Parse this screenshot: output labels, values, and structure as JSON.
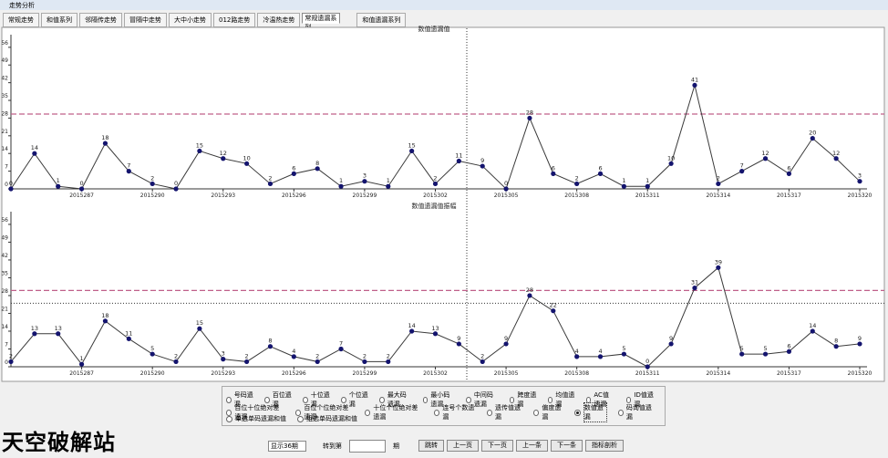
{
  "window_title": "走势分析",
  "tabs": [
    "常规走势",
    "和值系列",
    "邻隔传走势",
    "冒隔中走势",
    "大中小走势",
    "012路走势",
    "冷温热走势",
    "常规遗漏系列",
    "和值遗漏系列"
  ],
  "selected_tab": 7,
  "chart_data": [
    {
      "type": "line",
      "title": "数值遗漏值",
      "categories": [
        null,
        null,
        null,
        "2015287",
        null,
        null,
        "2015290",
        null,
        null,
        "2015293",
        null,
        null,
        "2015296",
        null,
        null,
        "2015299",
        null,
        null,
        "2015302",
        null,
        null,
        "2015305",
        null,
        null,
        "2015308",
        null,
        null,
        "2015311",
        null,
        null,
        "2015314",
        null,
        null,
        "2015317",
        null,
        null,
        "2015320"
      ],
      "values": [
        0,
        14,
        1,
        0,
        18,
        7,
        2,
        0,
        15,
        12,
        10,
        2,
        6,
        8,
        1,
        3,
        1,
        15,
        2,
        11,
        9,
        0,
        28,
        6,
        2,
        6,
        1,
        1,
        10,
        41,
        2,
        7,
        12,
        6,
        20,
        12,
        3
      ],
      "color": "#3a3a3a",
      "marker_color": "#14146e",
      "ylim": [
        0,
        61
      ],
      "yticks": [
        0,
        7,
        14,
        21,
        28,
        35,
        42,
        49,
        56
      ],
      "reference_lines": [
        {
          "value": 29.6,
          "color": "#c0608a",
          "style": "dashed"
        }
      ]
    },
    {
      "type": "line",
      "title": "数值遗漏值振幅",
      "categories": [
        null,
        null,
        null,
        "2015287",
        null,
        null,
        "2015290",
        null,
        null,
        "2015293",
        null,
        null,
        "2015296",
        null,
        null,
        "2015299",
        null,
        null,
        "2015302",
        null,
        null,
        "2015305",
        null,
        null,
        "2015308",
        null,
        null,
        "2015311",
        null,
        null,
        "2015314",
        null,
        null,
        "2015317",
        null,
        null,
        "2015320"
      ],
      "values": [
        2,
        13,
        13,
        1,
        18,
        11,
        5,
        2,
        15,
        3,
        2,
        8,
        4,
        2,
        7,
        2,
        2,
        14,
        13,
        9,
        2,
        9,
        28,
        22,
        4,
        4,
        5,
        0,
        9,
        31,
        39,
        5,
        5,
        6,
        14,
        8,
        9
      ],
      "color": "#3a3a3a",
      "marker_color": "#14146e",
      "ylim": [
        0,
        61
      ],
      "yticks": [
        0,
        7,
        14,
        21,
        28,
        35,
        42,
        49,
        56
      ],
      "reference_lines": [
        {
          "value": 30,
          "color": "#c0608a",
          "style": "dashed"
        },
        {
          "value": 25,
          "color": "#333333",
          "style": "dotted"
        }
      ]
    }
  ],
  "options": {
    "rows": [
      [
        "号码遗漏",
        "百位遗漏",
        "十位遗漏",
        "个位遗漏",
        "最大码遗漏",
        "最小码遗漏",
        "中间码遗漏",
        "跨度遗漏",
        "均值遗漏",
        "AC值遗漏",
        "ID值遗漏"
      ],
      [
        "百位十位绝对差遗漏",
        "百位个位绝对差遗漏",
        "十位个位绝对差遗漏",
        "连号个数遗漏",
        "遗传值遗漏",
        "偏度遗漏",
        "数值遗漏",
        "码询值遗漏"
      ],
      [
        "单选单码遗漏和值",
        "组选单码遗漏和值"
      ]
    ],
    "selected": [
      1,
      6
    ]
  },
  "watermark": "天空破解站",
  "controls": {
    "period_select": "显示36期",
    "goto_label": "转到第",
    "period_unit": "期",
    "buttons": [
      "跳转",
      "上一页",
      "下一页",
      "上一条",
      "下一条",
      "指标剖析"
    ]
  }
}
